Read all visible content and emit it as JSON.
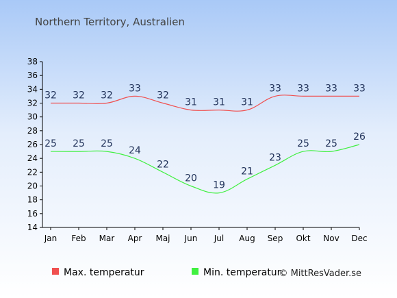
{
  "chart_data": {
    "type": "line",
    "title": "Northern Territory, Australien",
    "categories": [
      "Jan",
      "Feb",
      "Mar",
      "Apr",
      "Maj",
      "Jun",
      "Jul",
      "Aug",
      "Sep",
      "Okt",
      "Nov",
      "Dec"
    ],
    "series": [
      {
        "name": "Max. temperatur",
        "color": "#f05050",
        "values": [
          32,
          32,
          32,
          33,
          32,
          31,
          31,
          31,
          33,
          33,
          33,
          33
        ]
      },
      {
        "name": "Min. temperatur",
        "color": "#40f040",
        "values": [
          25,
          25,
          25,
          24,
          22,
          20,
          19,
          21,
          23,
          25,
          25,
          26
        ]
      }
    ],
    "ylim": [
      14,
      38
    ],
    "yticks": [
      14,
      16,
      18,
      20,
      22,
      24,
      26,
      28,
      30,
      32,
      34,
      36,
      38
    ],
    "xlabel": "",
    "ylabel": "",
    "legend_placement": "bottom-left",
    "grid": false
  },
  "credit": "© MittResVader.se"
}
